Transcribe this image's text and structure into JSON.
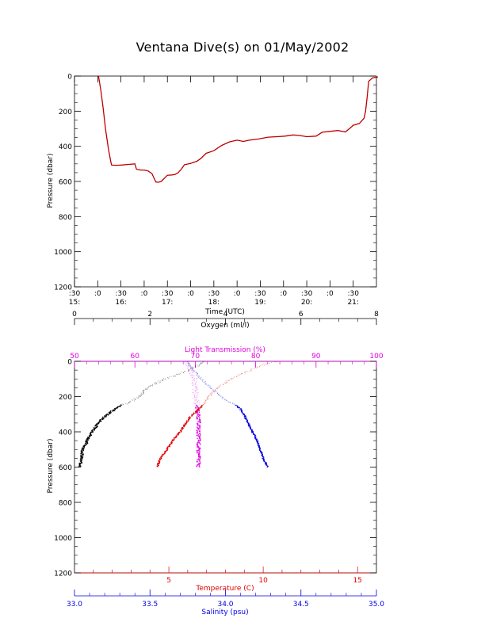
{
  "title": "Ventana Dive(s) on 01/May/2002",
  "colors": {
    "black": "#000000",
    "red": "#e00000",
    "magenta": "#e000e0",
    "blue": "#0000e0"
  },
  "chart_data": [
    {
      "type": "line",
      "title": "Ventana Dive(s) on 01/May/2002",
      "xlabel": "Time (UTC)",
      "ylabel": "Pressure (dbar)",
      "x_unit": "minutes since 15:30 UTC",
      "xlim": [
        0,
        390
      ],
      "ylim": [
        1200,
        0
      ],
      "y_ticks": [
        "0",
        "200",
        "400",
        "600",
        "800",
        "1000",
        "1200"
      ],
      "x_ticks_top": [
        ":30",
        ":0",
        ":30",
        ":0",
        ":30",
        ":0",
        ":30",
        ":0",
        ":30",
        ":0",
        ":30",
        ":0",
        ":30"
      ],
      "x_ticks_bottom": [
        "15:",
        "16:",
        "17:",
        "18:",
        "19:",
        "20:",
        "21:"
      ],
      "series": [
        {
          "x": [
            31,
            34,
            37,
            40,
            44,
            47,
            48,
            55,
            62,
            70,
            78,
            80,
            85,
            90,
            95,
            100,
            105,
            108,
            112,
            120,
            126,
            130,
            134,
            138,
            142,
            150,
            158,
            163,
            170,
            180,
            190,
            200,
            210,
            218,
            226,
            238,
            250,
            262,
            272,
            282,
            290,
            300,
            312,
            320,
            330,
            340,
            350,
            355,
            360,
            368,
            372,
            374,
            376,
            378,
            380,
            385,
            392
          ],
          "y": [
            0,
            80,
            180,
            300,
            420,
            490,
            507,
            508,
            506,
            503,
            500,
            530,
            535,
            535,
            540,
            555,
            603,
            605,
            600,
            565,
            563,
            560,
            550,
            530,
            505,
            497,
            485,
            470,
            440,
            425,
            395,
            375,
            365,
            372,
            365,
            358,
            348,
            345,
            342,
            335,
            338,
            345,
            342,
            320,
            315,
            310,
            318,
            300,
            280,
            270,
            250,
            240,
            200,
            120,
            30,
            10,
            5
          ]
        }
      ]
    },
    {
      "type": "scatter",
      "ylabel": "Pressure (dbar)",
      "ylim": [
        1200,
        0
      ],
      "y_ticks": [
        "0",
        "200",
        "400",
        "600",
        "800",
        "1000",
        "1200"
      ],
      "axes": {
        "oxygen": {
          "label": "Oxygen (ml/l)",
          "range": [
            0,
            8
          ],
          "ticks": [
            "0",
            "2",
            "4",
            "6",
            "8"
          ]
        },
        "light": {
          "label": "Light Transmission (%)",
          "range": [
            50,
            100
          ],
          "ticks": [
            "50",
            "60",
            "70",
            "80",
            "90",
            "100"
          ]
        },
        "temperature": {
          "label": "Temperature (C)",
          "range": [
            0,
            16
          ],
          "ticks": [
            "5",
            "10",
            "15"
          ]
        },
        "salinity": {
          "label": "Salinity (psu)",
          "range": [
            33.0,
            35.0
          ],
          "ticks": [
            "33.0",
            "33.5",
            "34.0",
            "34.5",
            "35.0"
          ]
        }
      },
      "series": [
        {
          "name": "Oxygen (ml/l)",
          "pressure": [
            0,
            20,
            50,
            100,
            150,
            200,
            230,
            250,
            270,
            300,
            330,
            360,
            400,
            430,
            460,
            500,
            530,
            560,
            600
          ],
          "value": [
            3.45,
            3.3,
            3.05,
            2.4,
            1.95,
            1.7,
            1.5,
            1.25,
            1.08,
            0.88,
            0.72,
            0.6,
            0.48,
            0.38,
            0.32,
            0.22,
            0.2,
            0.17,
            0.15
          ]
        },
        {
          "name": "Light Transmission (%)",
          "pressure": [
            0,
            50,
            100,
            200,
            250,
            280,
            300,
            350,
            400,
            450,
            500,
            550,
            600
          ],
          "value": [
            68.5,
            69.2,
            69.8,
            70.1,
            70.3,
            70.4,
            70.5,
            70.6,
            70.5,
            70.6,
            70.5,
            70.6,
            70.5
          ]
        },
        {
          "name": "Temperature (C)",
          "pressure": [
            0,
            10,
            30,
            60,
            100,
            150,
            200,
            250,
            280,
            300,
            320,
            350,
            400,
            450,
            500,
            530,
            560,
            600
          ],
          "value": [
            10.8,
            10.3,
            9.8,
            9.1,
            8.3,
            7.6,
            7.1,
            6.8,
            6.5,
            6.3,
            6.1,
            5.9,
            5.6,
            5.2,
            4.9,
            4.7,
            4.5,
            4.4
          ]
        },
        {
          "name": "Salinity (psu)",
          "pressure": [
            0,
            20,
            50,
            100,
            150,
            200,
            230,
            250,
            270,
            300,
            330,
            350,
            400,
            450,
            500,
            550,
            600
          ],
          "value": [
            33.75,
            33.76,
            33.79,
            33.84,
            33.9,
            33.97,
            34.02,
            34.07,
            34.1,
            34.12,
            34.14,
            34.15,
            34.18,
            34.21,
            34.23,
            34.25,
            34.28
          ]
        }
      ]
    }
  ]
}
